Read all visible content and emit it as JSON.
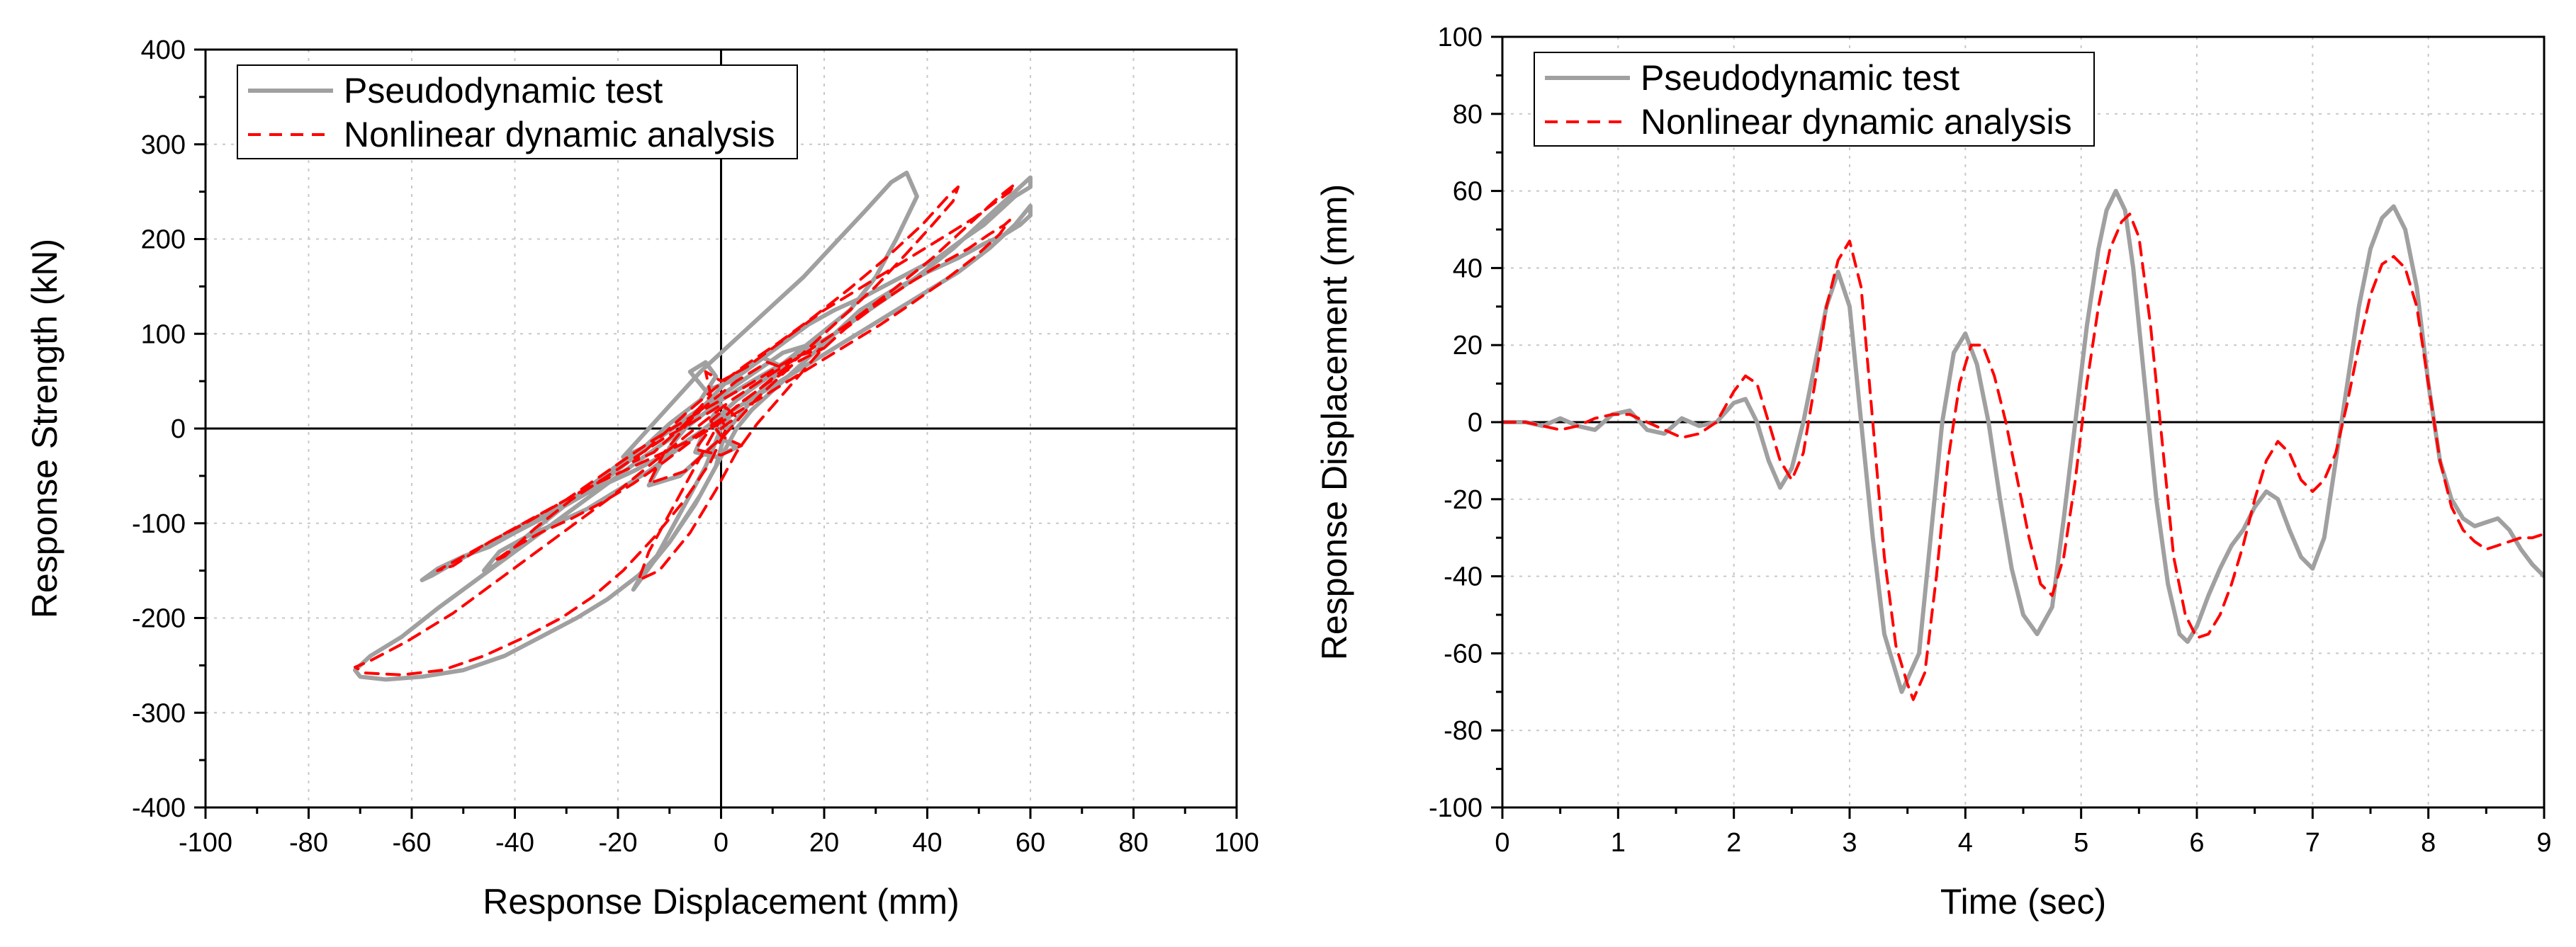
{
  "chart_data": [
    {
      "type": "line",
      "title": "",
      "xlabel": "Response Displacement (mm)",
      "ylabel": "Response Strength (kN)",
      "xlim": [
        -100,
        100
      ],
      "ylim": [
        -400,
        400
      ],
      "xticks": [
        -100,
        -80,
        -60,
        -40,
        -20,
        0,
        20,
        40,
        60,
        80,
        100
      ],
      "yticks": [
        -400,
        -300,
        -200,
        -100,
        0,
        100,
        200,
        300,
        400
      ],
      "grid": true,
      "zero_lines": true,
      "legend": "top-left",
      "series": [
        {
          "name": "Pseudodynamic test",
          "color": "#a0a0a0",
          "style": "solid",
          "x": [
            0,
            2,
            0,
            -2,
            0,
            3,
            -1,
            -5,
            -3,
            3,
            8,
            12,
            8,
            2,
            -4,
            -10,
            -14,
            -8,
            0,
            6,
            13,
            18,
            12,
            4,
            -4,
            -12,
            -18,
            -25,
            -33,
            -40,
            -45,
            -50,
            -55,
            -58,
            -56,
            -48,
            -38,
            -27,
            -17,
            -10,
            -3,
            3,
            10,
            17,
            25,
            30,
            34,
            38,
            36,
            33,
            28,
            22,
            16,
            10,
            4,
            0,
            -4,
            -9,
            -14,
            -19,
            -15,
            -10,
            -4,
            -1,
            -3,
            -6,
            -3,
            2,
            7,
            12,
            17,
            22,
            28,
            35,
            42,
            47,
            51,
            54,
            57,
            60,
            60,
            57,
            52,
            45,
            38,
            30,
            22,
            14,
            6,
            0,
            -7,
            -15,
            -25,
            -35,
            -45,
            -55,
            -62,
            -68,
            -71,
            -70,
            -65,
            -58,
            -50,
            -42,
            -35,
            -28,
            -22,
            -16,
            -10,
            -5,
            -1,
            1,
            1,
            0,
            -3,
            -8,
            -13,
            -17,
            -16,
            -10,
            -4,
            0,
            3,
            6,
            10,
            14,
            18,
            22,
            27,
            33,
            40,
            46,
            51,
            55,
            58,
            60,
            60,
            57,
            52,
            46,
            40,
            34,
            28,
            22,
            16,
            10,
            4,
            -2,
            -8,
            -14,
            -20,
            -26,
            -32,
            -38,
            -43,
            -46,
            -44,
            -38,
            -30,
            -24,
            -18,
            -12,
            -7,
            -3,
            0
          ],
          "y": [
            0,
            15,
            25,
            10,
            -10,
            -20,
            -30,
            -25,
            0,
            30,
            50,
            65,
            75,
            55,
            20,
            -20,
            -60,
            -50,
            -10,
            30,
            70,
            90,
            80,
            50,
            20,
            -10,
            -35,
            -65,
            -90,
            -110,
            -125,
            -135,
            -148,
            -160,
            -155,
            -130,
            -100,
            -70,
            -45,
            -25,
            0,
            30,
            60,
            90,
            125,
            160,
            200,
            245,
            270,
            260,
            230,
            195,
            160,
            130,
            100,
            80,
            60,
            30,
            0,
            -30,
            -20,
            5,
            30,
            55,
            70,
            60,
            40,
            50,
            70,
            90,
            110,
            125,
            140,
            160,
            180,
            200,
            215,
            230,
            245,
            255,
            265,
            250,
            225,
            190,
            160,
            130,
            100,
            75,
            50,
            30,
            0,
            -30,
            -70,
            -110,
            -150,
            -190,
            -220,
            -240,
            -255,
            -262,
            -265,
            -262,
            -255,
            -240,
            -220,
            -200,
            -180,
            -155,
            -120,
            -80,
            -40,
            0,
            20,
            0,
            -40,
            -90,
            -140,
            -170,
            -160,
            -120,
            -70,
            -30,
            0,
            20,
            40,
            60,
            80,
            100,
            125,
            145,
            165,
            180,
            195,
            205,
            215,
            225,
            235,
            215,
            190,
            165,
            145,
            125,
            105,
            85,
            65,
            45,
            25,
            5,
            -20,
            -45,
            -65,
            -85,
            -100,
            -115,
            -130,
            -150,
            -145,
            -115,
            -80,
            -55,
            -30,
            -10,
            10,
            25,
            30
          ]
        },
        {
          "name": "Nonlinear dynamic analysis",
          "color": "#ff0000",
          "style": "dashed",
          "x": [
            0,
            3,
            1,
            -2,
            0,
            4,
            0,
            -5,
            -2,
            4,
            9,
            13,
            9,
            3,
            -5,
            -11,
            -14,
            -7,
            1,
            7,
            14,
            20,
            14,
            5,
            -5,
            -14,
            -22,
            -30,
            -38,
            -45,
            -50,
            -55,
            -52,
            -45,
            -35,
            -25,
            -15,
            -7,
            0,
            7,
            15,
            22,
            30,
            36,
            41,
            45,
            46,
            44,
            39,
            32,
            25,
            18,
            11,
            5,
            0,
            -6,
            -12,
            -17,
            -13,
            -7,
            -2,
            -3,
            0,
            5,
            10,
            15,
            20,
            26,
            32,
            38,
            44,
            49,
            53,
            56,
            57,
            54,
            48,
            41,
            33,
            25,
            17,
            9,
            2,
            -5,
            -13,
            -22,
            -32,
            -42,
            -52,
            -61,
            -68,
            -71,
            -69,
            -62,
            -54,
            -46,
            -38,
            -31,
            -25,
            -19,
            -13,
            -7,
            -2,
            1,
            0,
            -4,
            -9,
            -14,
            -16,
            -12,
            -6,
            -1,
            3,
            7,
            11,
            15,
            19,
            24,
            30,
            37,
            43,
            48,
            52,
            55,
            56,
            54,
            49,
            43,
            37,
            31,
            25,
            19,
            13,
            7,
            1,
            -5,
            -11,
            -17,
            -23,
            -29,
            -35,
            -40,
            -44,
            -42,
            -36,
            -29,
            -22,
            -16,
            -11,
            -6,
            -2,
            0
          ],
          "y": [
            0,
            12,
            22,
            8,
            -8,
            -18,
            -28,
            -22,
            0,
            28,
            48,
            62,
            70,
            50,
            15,
            -25,
            -58,
            -45,
            -5,
            32,
            68,
            85,
            75,
            45,
            15,
            -15,
            -45,
            -75,
            -100,
            -120,
            -135,
            -150,
            -145,
            -120,
            -90,
            -60,
            -35,
            -15,
            10,
            40,
            75,
            110,
            150,
            185,
            215,
            240,
            255,
            245,
            215,
            180,
            148,
            118,
            90,
            68,
            48,
            20,
            -10,
            -35,
            -25,
            5,
            35,
            60,
            50,
            65,
            85,
            105,
            125,
            145,
            165,
            185,
            205,
            222,
            238,
            250,
            258,
            245,
            215,
            180,
            145,
            112,
            82,
            55,
            30,
            0,
            -35,
            -75,
            -115,
            -155,
            -195,
            -225,
            -245,
            -252,
            -258,
            -260,
            -255,
            -240,
            -220,
            -200,
            -178,
            -150,
            -115,
            -75,
            -35,
            0,
            10,
            -30,
            -80,
            -130,
            -160,
            -150,
            -110,
            -65,
            -25,
            5,
            30,
            55,
            80,
            105,
            130,
            155,
            175,
            190,
            205,
            215,
            220,
            205,
            180,
            155,
            132,
            110,
            90,
            70,
            50,
            30,
            10,
            -10,
            -35,
            -58,
            -78,
            -95,
            -110,
            -125,
            -140,
            -135,
            -105,
            -75,
            -50,
            -28,
            -10,
            5,
            18,
            25
          ]
        }
      ]
    },
    {
      "type": "line",
      "title": "",
      "xlabel": "Time (sec)",
      "ylabel": "Response Displacement (mm)",
      "xlim": [
        0,
        9
      ],
      "ylim": [
        -100,
        100
      ],
      "xticks": [
        0,
        1,
        2,
        3,
        4,
        5,
        6,
        7,
        8,
        9
      ],
      "yticks": [
        -100,
        -80,
        -60,
        -40,
        -20,
        0,
        20,
        40,
        60,
        80,
        100
      ],
      "grid": true,
      "zero_lines": true,
      "legend": "top-left",
      "series": [
        {
          "name": "Pseudodynamic test",
          "color": "#a0a0a0",
          "style": "solid",
          "x": [
            0,
            0.2,
            0.35,
            0.5,
            0.65,
            0.8,
            0.95,
            1.1,
            1.25,
            1.4,
            1.55,
            1.7,
            1.85,
            2.0,
            2.1,
            2.2,
            2.3,
            2.4,
            2.5,
            2.6,
            2.7,
            2.8,
            2.9,
            3.0,
            3.1,
            3.2,
            3.3,
            3.45,
            3.6,
            3.7,
            3.8,
            3.9,
            4.0,
            4.1,
            4.2,
            4.3,
            4.4,
            4.5,
            4.62,
            4.75,
            4.85,
            4.95,
            5.05,
            5.15,
            5.22,
            5.3,
            5.38,
            5.45,
            5.55,
            5.65,
            5.75,
            5.85,
            5.92,
            6.0,
            6.1,
            6.2,
            6.3,
            6.4,
            6.5,
            6.6,
            6.7,
            6.8,
            6.9,
            7.0,
            7.1,
            7.2,
            7.3,
            7.4,
            7.5,
            7.6,
            7.7,
            7.8,
            7.9,
            8.0,
            8.1,
            8.2,
            8.3,
            8.4,
            8.5,
            8.6,
            8.7,
            8.8,
            8.9,
            9.0
          ],
          "y": [
            0,
            0,
            -1,
            1,
            -1,
            -2,
            2,
            3,
            -2,
            -3,
            1,
            -1,
            0,
            5,
            6,
            0,
            -10,
            -17,
            -12,
            0,
            15,
            30,
            39,
            30,
            0,
            -30,
            -55,
            -70,
            -60,
            -30,
            0,
            18,
            23,
            15,
            0,
            -20,
            -38,
            -50,
            -55,
            -48,
            -25,
            0,
            25,
            45,
            55,
            60,
            55,
            40,
            10,
            -20,
            -42,
            -55,
            -57,
            -53,
            -45,
            -38,
            -32,
            -28,
            -22,
            -18,
            -20,
            -28,
            -35,
            -38,
            -30,
            -10,
            10,
            30,
            45,
            53,
            56,
            50,
            35,
            10,
            -10,
            -20,
            -25,
            -27,
            -26,
            -25,
            -28,
            -33,
            -37,
            -40
          ]
        },
        {
          "name": "Nonlinear dynamic analysis",
          "color": "#ff0000",
          "style": "dashed",
          "x": [
            0,
            0.2,
            0.35,
            0.5,
            0.65,
            0.8,
            0.95,
            1.1,
            1.25,
            1.4,
            1.55,
            1.7,
            1.85,
            2.0,
            2.1,
            2.2,
            2.3,
            2.4,
            2.5,
            2.6,
            2.7,
            2.8,
            2.9,
            3.0,
            3.1,
            3.2,
            3.3,
            3.4,
            3.5,
            3.55,
            3.65,
            3.75,
            3.85,
            3.95,
            4.05,
            4.15,
            4.25,
            4.35,
            4.45,
            4.55,
            4.65,
            4.75,
            4.85,
            4.95,
            5.05,
            5.15,
            5.25,
            5.35,
            5.42,
            5.5,
            5.6,
            5.7,
            5.8,
            5.9,
            6.0,
            6.1,
            6.2,
            6.3,
            6.4,
            6.5,
            6.6,
            6.7,
            6.8,
            6.9,
            7.0,
            7.1,
            7.2,
            7.3,
            7.4,
            7.5,
            7.6,
            7.7,
            7.8,
            7.9,
            8.0,
            8.1,
            8.2,
            8.3,
            8.4,
            8.5,
            8.6,
            8.7,
            8.8,
            8.9,
            9.0
          ],
          "y": [
            0,
            0,
            -1,
            -2,
            -1,
            1,
            2,
            2,
            0,
            -2,
            -4,
            -3,
            0,
            8,
            12,
            10,
            0,
            -10,
            -15,
            -8,
            10,
            30,
            42,
            47,
            35,
            0,
            -35,
            -58,
            -68,
            -72,
            -65,
            -40,
            -10,
            10,
            20,
            20,
            12,
            0,
            -15,
            -30,
            -42,
            -45,
            -35,
            -15,
            10,
            30,
            45,
            52,
            54,
            48,
            25,
            -5,
            -35,
            -50,
            -56,
            -55,
            -50,
            -42,
            -32,
            -20,
            -10,
            -5,
            -8,
            -15,
            -18,
            -15,
            -8,
            5,
            20,
            33,
            41,
            43,
            40,
            30,
            10,
            -10,
            -22,
            -28,
            -31,
            -33,
            -32,
            -31,
            -30,
            -30,
            -29
          ]
        }
      ]
    }
  ]
}
